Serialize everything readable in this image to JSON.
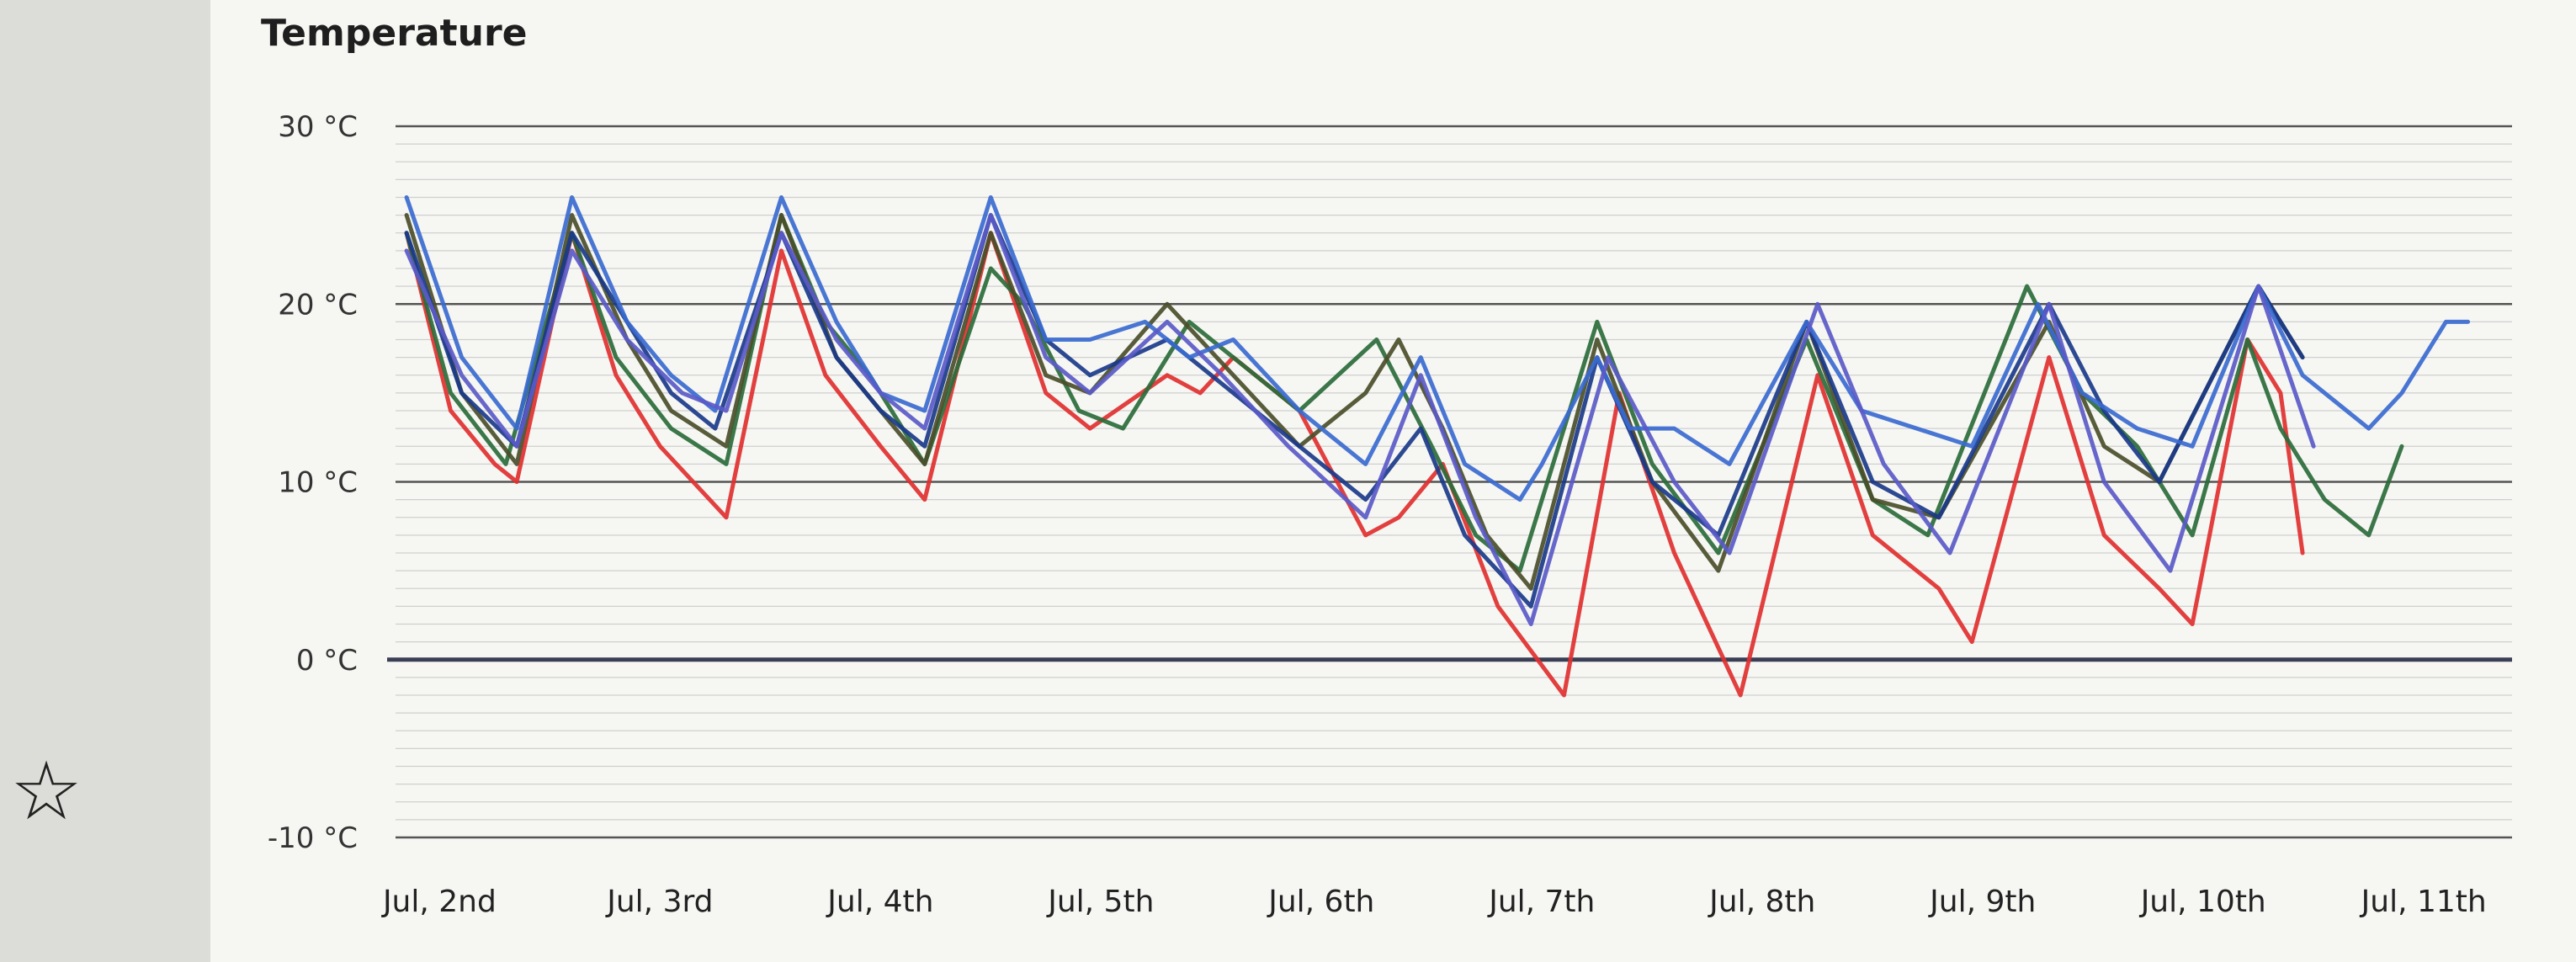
{
  "chart_data": {
    "type": "line",
    "title": "Temperature",
    "ylim": [
      -10,
      30
    ],
    "y_ticks": [
      "30 °C",
      "20 °C",
      "10 °C",
      "0 °C",
      "-10 °C"
    ],
    "y_tick_values": [
      30,
      20,
      10,
      0,
      -10
    ],
    "x_range": [
      1.8,
      11.4
    ],
    "x_ticks": [
      "Jul, 2nd",
      "Jul, 3rd",
      "Jul, 4th",
      "Jul, 5th",
      "Jul, 6th",
      "Jul, 7th",
      "Jul, 8th",
      "Jul, 9th",
      "Jul, 10th",
      "Jul, 11th"
    ],
    "x_tick_values": [
      2,
      3,
      4,
      5,
      6,
      7,
      8,
      9,
      10,
      11
    ],
    "grid": true,
    "legend": "none",
    "series": [
      {
        "color": "#e03030",
        "points": [
          [
            1.85,
            24
          ],
          [
            2.05,
            14
          ],
          [
            2.25,
            11
          ],
          [
            2.35,
            10
          ],
          [
            2.6,
            24
          ],
          [
            2.8,
            16
          ],
          [
            3.0,
            12
          ],
          [
            3.3,
            8
          ],
          [
            3.55,
            23
          ],
          [
            3.75,
            16
          ],
          [
            4.0,
            12
          ],
          [
            4.2,
            9
          ],
          [
            4.5,
            24
          ],
          [
            4.75,
            15
          ],
          [
            4.95,
            13
          ],
          [
            5.3,
            16
          ],
          [
            5.45,
            15
          ],
          [
            5.6,
            17
          ],
          [
            5.9,
            14
          ],
          [
            6.2,
            7
          ],
          [
            6.35,
            8
          ],
          [
            6.55,
            11
          ],
          [
            6.8,
            3
          ],
          [
            7.1,
            -2
          ],
          [
            7.35,
            15
          ],
          [
            7.6,
            6
          ],
          [
            7.9,
            -2
          ],
          [
            8.25,
            16
          ],
          [
            8.5,
            7
          ],
          [
            8.8,
            4
          ],
          [
            8.95,
            1
          ],
          [
            9.3,
            17
          ],
          [
            9.55,
            7
          ],
          [
            9.8,
            4
          ],
          [
            9.95,
            2
          ],
          [
            10.2,
            18
          ],
          [
            10.35,
            15
          ],
          [
            10.45,
            6
          ]
        ]
      },
      {
        "color": "#2a6b3a",
        "points": [
          [
            1.85,
            24
          ],
          [
            2.05,
            15
          ],
          [
            2.3,
            11
          ],
          [
            2.6,
            24
          ],
          [
            2.8,
            17
          ],
          [
            3.05,
            13
          ],
          [
            3.3,
            11
          ],
          [
            3.55,
            25
          ],
          [
            3.75,
            19
          ],
          [
            3.95,
            16
          ],
          [
            4.2,
            11
          ],
          [
            4.5,
            22
          ],
          [
            4.65,
            20
          ],
          [
            4.9,
            14
          ],
          [
            5.1,
            13
          ],
          [
            5.4,
            19
          ],
          [
            5.7,
            16
          ],
          [
            5.9,
            14
          ],
          [
            6.25,
            18
          ],
          [
            6.5,
            12
          ],
          [
            6.7,
            7
          ],
          [
            6.9,
            5
          ],
          [
            7.25,
            19
          ],
          [
            7.5,
            11
          ],
          [
            7.8,
            6
          ],
          [
            8.2,
            18
          ],
          [
            8.5,
            9
          ],
          [
            8.75,
            7
          ],
          [
            9.2,
            21
          ],
          [
            9.45,
            15
          ],
          [
            9.7,
            12
          ],
          [
            9.95,
            7
          ],
          [
            10.2,
            18
          ],
          [
            10.35,
            13
          ],
          [
            10.55,
            9
          ],
          [
            10.75,
            7
          ],
          [
            10.9,
            12
          ]
        ]
      },
      {
        "color": "#4a4e2a",
        "points": [
          [
            1.85,
            25
          ],
          [
            2.1,
            15
          ],
          [
            2.35,
            11
          ],
          [
            2.6,
            25
          ],
          [
            2.85,
            18
          ],
          [
            3.05,
            14
          ],
          [
            3.3,
            12
          ],
          [
            3.55,
            25
          ],
          [
            3.8,
            17
          ],
          [
            4.0,
            14
          ],
          [
            4.2,
            11
          ],
          [
            4.5,
            24
          ],
          [
            4.75,
            16
          ],
          [
            4.95,
            15
          ],
          [
            5.3,
            20
          ],
          [
            5.6,
            16
          ],
          [
            5.9,
            12
          ],
          [
            6.2,
            15
          ],
          [
            6.35,
            18
          ],
          [
            6.55,
            13
          ],
          [
            6.75,
            7
          ],
          [
            6.95,
            4
          ],
          [
            7.25,
            18
          ],
          [
            7.5,
            10
          ],
          [
            7.8,
            5
          ],
          [
            8.2,
            19
          ],
          [
            8.5,
            9
          ],
          [
            8.8,
            8
          ],
          [
            9.3,
            19
          ],
          [
            9.55,
            12
          ],
          [
            9.8,
            10
          ],
          [
            10.25,
            21
          ],
          [
            10.45,
            17
          ]
        ]
      },
      {
        "color": "#1a3a8a",
        "points": [
          [
            1.85,
            24
          ],
          [
            2.1,
            15
          ],
          [
            2.35,
            12
          ],
          [
            2.6,
            24
          ],
          [
            2.85,
            19
          ],
          [
            3.05,
            15
          ],
          [
            3.25,
            13
          ],
          [
            3.55,
            24
          ],
          [
            3.8,
            17
          ],
          [
            4.0,
            14
          ],
          [
            4.2,
            12
          ],
          [
            4.5,
            25
          ],
          [
            4.75,
            18
          ],
          [
            4.95,
            16
          ],
          [
            5.3,
            18
          ],
          [
            5.6,
            15
          ],
          [
            5.9,
            12
          ],
          [
            6.2,
            9
          ],
          [
            6.45,
            13
          ],
          [
            6.65,
            7
          ],
          [
            6.95,
            3
          ],
          [
            7.25,
            17
          ],
          [
            7.5,
            10
          ],
          [
            7.8,
            7
          ],
          [
            8.2,
            19
          ],
          [
            8.5,
            10
          ],
          [
            8.8,
            8
          ],
          [
            9.3,
            20
          ],
          [
            9.55,
            14
          ],
          [
            9.8,
            10
          ],
          [
            10.25,
            21
          ],
          [
            10.45,
            17
          ]
        ]
      },
      {
        "color": "#3a6ad0",
        "points": [
          [
            1.85,
            26
          ],
          [
            2.1,
            17
          ],
          [
            2.35,
            13
          ],
          [
            2.6,
            26
          ],
          [
            2.85,
            19
          ],
          [
            3.05,
            16
          ],
          [
            3.25,
            14
          ],
          [
            3.55,
            26
          ],
          [
            3.8,
            19
          ],
          [
            4.0,
            15
          ],
          [
            4.2,
            14
          ],
          [
            4.5,
            26
          ],
          [
            4.75,
            18
          ],
          [
            4.95,
            18
          ],
          [
            5.2,
            19
          ],
          [
            5.4,
            17
          ],
          [
            5.6,
            18
          ],
          [
            5.9,
            14
          ],
          [
            6.2,
            11
          ],
          [
            6.45,
            17
          ],
          [
            6.65,
            11
          ],
          [
            6.9,
            9
          ],
          [
            7.0,
            11
          ],
          [
            7.25,
            17
          ],
          [
            7.4,
            13
          ],
          [
            7.6,
            13
          ],
          [
            7.85,
            11
          ],
          [
            8.2,
            19
          ],
          [
            8.45,
            14
          ],
          [
            8.7,
            13
          ],
          [
            8.95,
            12
          ],
          [
            9.25,
            20
          ],
          [
            9.45,
            15
          ],
          [
            9.7,
            13
          ],
          [
            9.95,
            12
          ],
          [
            10.25,
            21
          ],
          [
            10.45,
            16
          ],
          [
            10.75,
            13
          ],
          [
            10.9,
            15
          ],
          [
            11.1,
            19
          ],
          [
            11.2,
            19
          ]
        ]
      },
      {
        "color": "#5a5ac8",
        "points": [
          [
            1.85,
            23
          ],
          [
            2.1,
            16
          ],
          [
            2.35,
            12
          ],
          [
            2.6,
            23
          ],
          [
            2.85,
            18
          ],
          [
            3.1,
            15
          ],
          [
            3.3,
            14
          ],
          [
            3.55,
            24
          ],
          [
            3.8,
            18
          ],
          [
            4.0,
            15
          ],
          [
            4.2,
            13
          ],
          [
            4.5,
            25
          ],
          [
            4.75,
            17
          ],
          [
            4.95,
            15
          ],
          [
            5.3,
            19
          ],
          [
            5.55,
            16
          ],
          [
            5.85,
            12
          ],
          [
            6.2,
            8
          ],
          [
            6.45,
            16
          ],
          [
            6.7,
            8
          ],
          [
            6.95,
            2
          ],
          [
            7.3,
            17
          ],
          [
            7.6,
            10
          ],
          [
            7.85,
            6
          ],
          [
            8.25,
            20
          ],
          [
            8.55,
            11
          ],
          [
            8.85,
            6
          ],
          [
            9.3,
            20
          ],
          [
            9.55,
            10
          ],
          [
            9.85,
            5
          ],
          [
            10.25,
            21
          ],
          [
            10.5,
            12
          ]
        ]
      }
    ]
  }
}
